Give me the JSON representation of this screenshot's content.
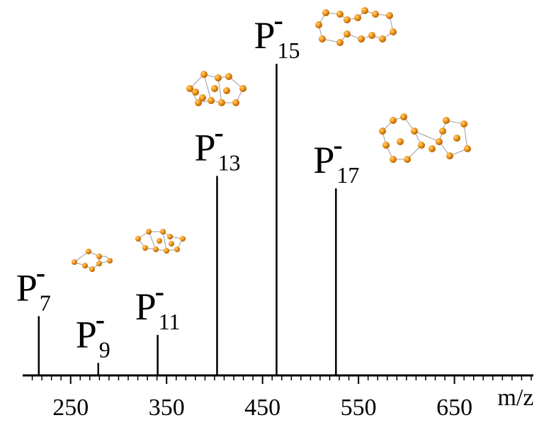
{
  "chart_data": {
    "type": "stem",
    "x": [
      216.8,
      278.8,
      340.7,
      402.6,
      464.6,
      526.5
    ],
    "values": [
      19,
      4,
      13,
      64,
      100,
      60
    ],
    "labels": [
      {
        "base": "P",
        "charge": "-",
        "n": "7"
      },
      {
        "base": "P",
        "charge": "-",
        "n": "9"
      },
      {
        "base": "P",
        "charge": "-",
        "n": "11"
      },
      {
        "base": "P",
        "charge": "-",
        "n": "13"
      },
      {
        "base": "P",
        "charge": "-",
        "n": "15"
      },
      {
        "base": "P",
        "charge": "-",
        "n": "17"
      }
    ],
    "color": "#000000",
    "xlabel": "m/z",
    "xlim": [
      200,
      730
    ],
    "ylim": [
      0,
      100
    ],
    "xticks": [
      250,
      350,
      450,
      550,
      650
    ],
    "xminorticks": [
      210,
      220,
      230,
      240,
      250,
      260,
      270,
      280,
      290,
      300,
      310,
      320,
      330,
      340,
      350,
      360,
      370,
      380,
      390,
      400,
      410,
      420,
      430,
      440,
      450,
      460,
      470,
      480,
      490,
      500,
      510,
      520,
      530,
      540,
      550,
      560,
      570,
      580,
      590,
      600,
      610,
      620,
      630,
      640,
      650,
      660,
      670,
      680,
      690,
      700,
      710,
      720,
      730
    ]
  }
}
